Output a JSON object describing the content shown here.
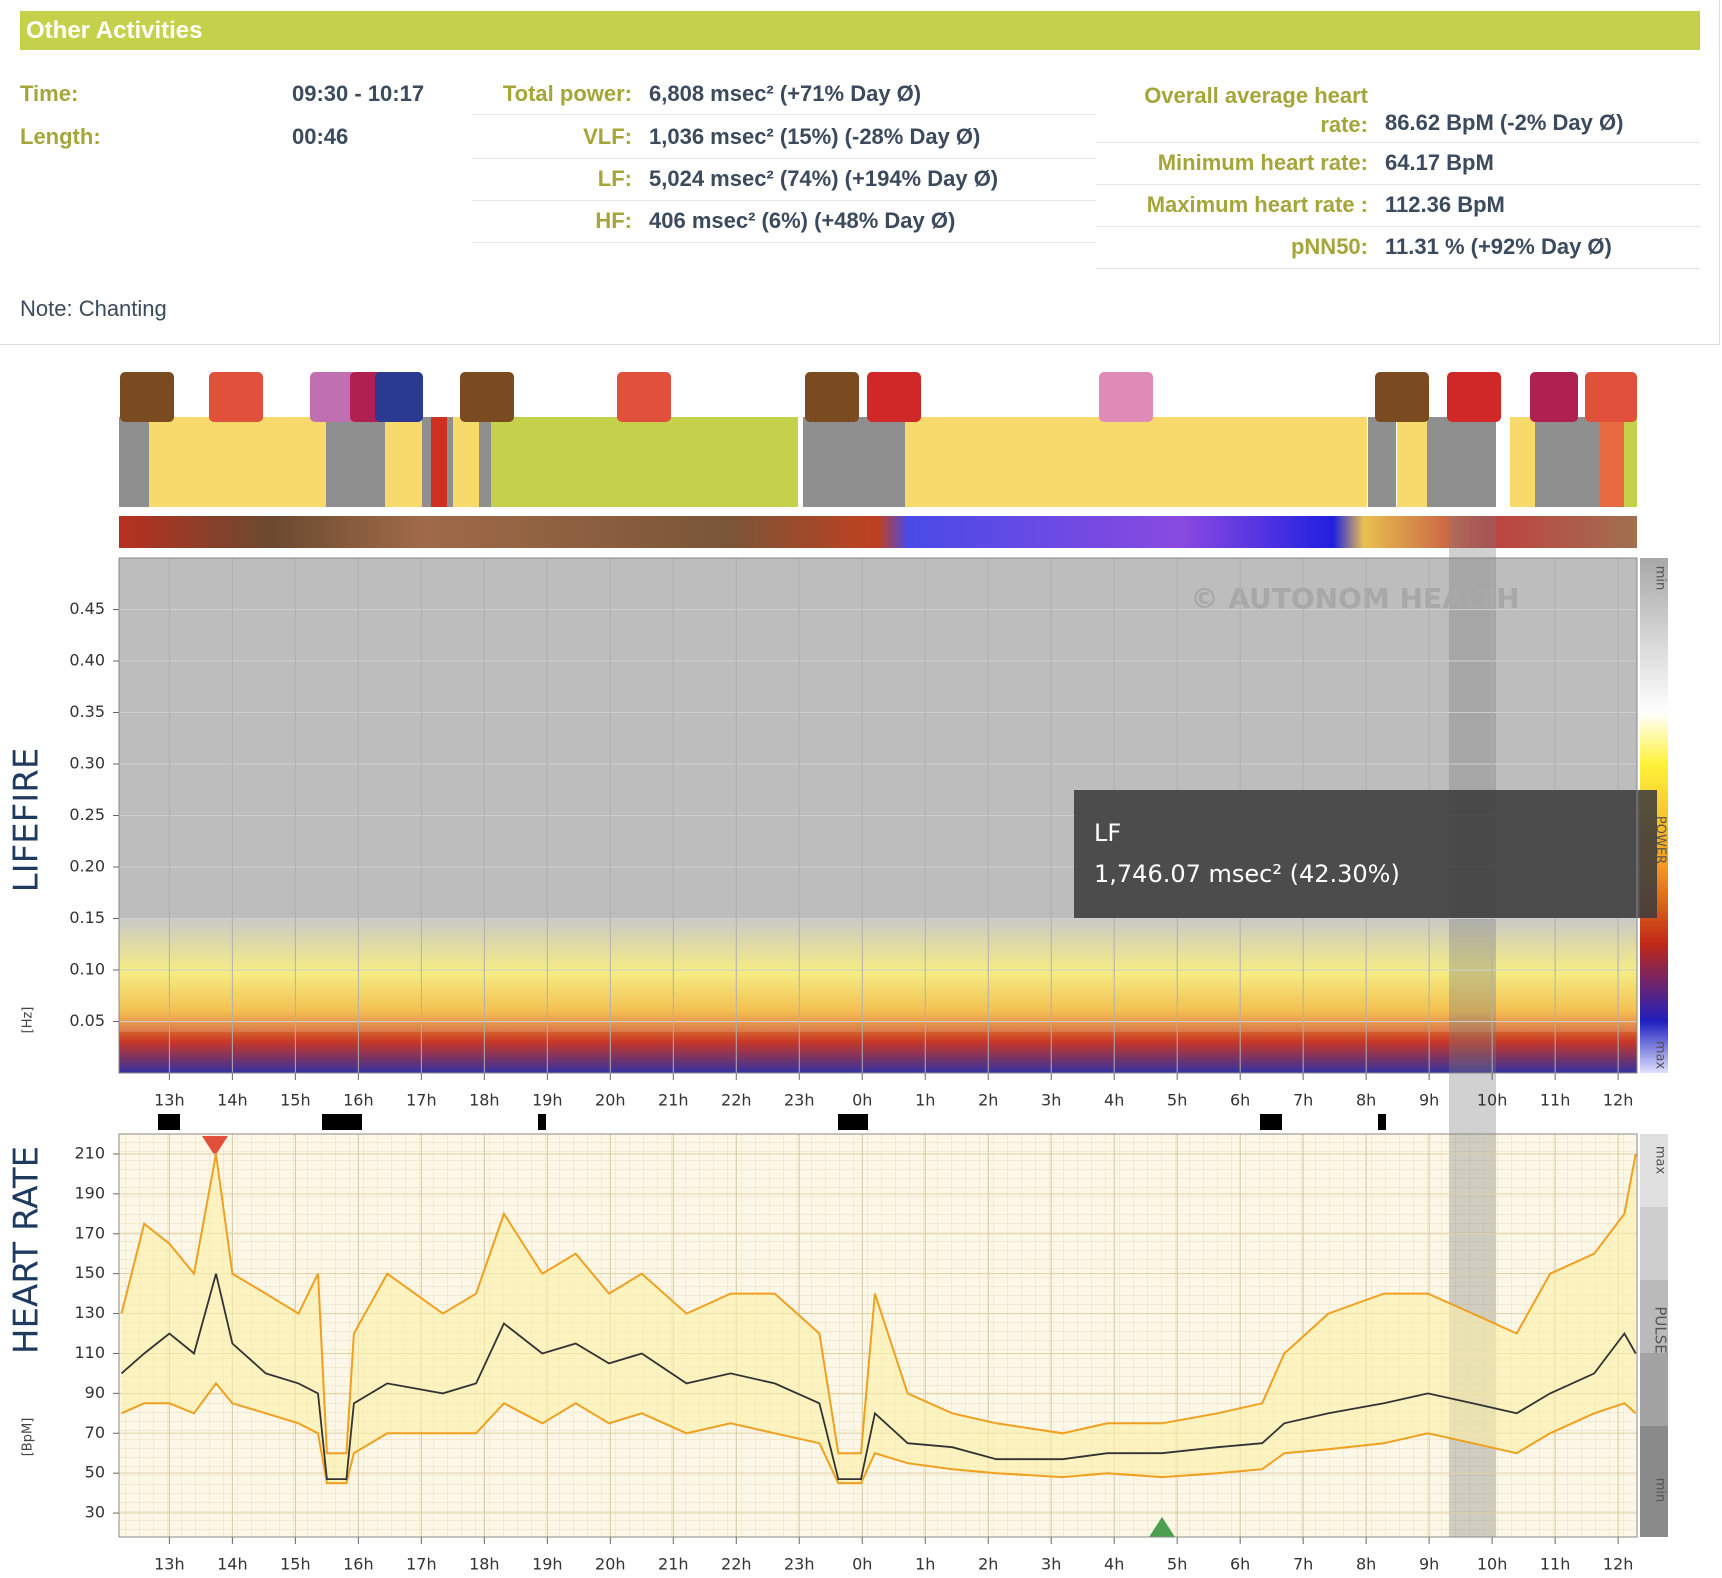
{
  "header": {
    "title": "Other Activities",
    "time": {
      "label": "Time:",
      "value": "09:30 - 10:17"
    },
    "length": {
      "label": "Length:",
      "value": "00:46"
    },
    "power": [
      {
        "label": "Total power:",
        "value": "6,808 msec² (+71% Day Ø)"
      },
      {
        "label": "VLF:",
        "value": "1,036 msec² (15%) (-28% Day Ø)"
      },
      {
        "label": "LF:",
        "value": "5,024 msec² (74%) (+194% Day Ø)"
      },
      {
        "label": "HF:",
        "value": "406 msec² (6%) (+48% Day Ø)"
      }
    ],
    "heart": [
      {
        "label": "Overall average heart rate:",
        "value": "86.62 BpM (-2% Day Ø)"
      },
      {
        "label": "Minimum heart rate:",
        "value": "64.17 BpM"
      },
      {
        "label": "Maximum heart rate :",
        "value": "112.36 BpM"
      },
      {
        "label": "pNN50:",
        "value": "11.31 % (+92% Day Ø)"
      }
    ],
    "note": "Note: Chanting"
  },
  "chart_data": [
    {
      "type": "heatmap",
      "title": "LIFEFIRE",
      "ylabel": "[Hz]",
      "watermark": "© AUTONOM HEALTH",
      "legend": {
        "top": "min",
        "middle": "POWER",
        "bottom": "max"
      },
      "tooltip": {
        "title": "LF",
        "text": "1,746.07 msec² (42.30%)"
      },
      "xlim": [
        12.2,
        36.3
      ],
      "xticks": [
        {
          "value": 13,
          "label": "13h"
        },
        {
          "value": 14,
          "label": "14h"
        },
        {
          "value": 15,
          "label": "15h"
        },
        {
          "value": 16,
          "label": "16h"
        },
        {
          "value": 17,
          "label": "17h"
        },
        {
          "value": 18,
          "label": "18h"
        },
        {
          "value": 19,
          "label": "19h"
        },
        {
          "value": 20,
          "label": "20h"
        },
        {
          "value": 21,
          "label": "21h"
        },
        {
          "value": 22,
          "label": "22h"
        },
        {
          "value": 23,
          "label": "23h"
        },
        {
          "value": 24,
          "label": "0h"
        },
        {
          "value": 25,
          "label": "1h"
        },
        {
          "value": 26,
          "label": "2h"
        },
        {
          "value": 27,
          "label": "3h"
        },
        {
          "value": 28,
          "label": "4h"
        },
        {
          "value": 29,
          "label": "5h"
        },
        {
          "value": 30,
          "label": "6h"
        },
        {
          "value": 31,
          "label": "7h"
        },
        {
          "value": 32,
          "label": "8h"
        },
        {
          "value": 33,
          "label": "9h"
        },
        {
          "value": 34,
          "label": "10h"
        },
        {
          "value": 35,
          "label": "11h"
        },
        {
          "value": 36,
          "label": "12h"
        }
      ],
      "ylim": [
        0,
        0.5
      ],
      "yticks": [
        0.05,
        {
          "value": 0.1,
          "label": "0.10"
        },
        0.15,
        {
          "value": 0.2,
          "label": "0.20"
        },
        0.25,
        {
          "value": 0.3,
          "label": "0.30"
        },
        0.35,
        {
          "value": 0.4,
          "label": "0.40"
        },
        0.45
      ]
    },
    {
      "type": "line",
      "title": "HEART RATE",
      "ylabel": "[BpM]",
      "legend": {
        "top": "max",
        "middle": "PULSE",
        "bottom": "min"
      },
      "xlim": [
        12.2,
        36.3
      ],
      "xticks": [
        {
          "value": 13,
          "label": "13h"
        },
        {
          "value": 14,
          "label": "14h"
        },
        {
          "value": 15,
          "label": "15h"
        },
        {
          "value": 16,
          "label": "16h"
        },
        {
          "value": 17,
          "label": "17h"
        },
        {
          "value": 18,
          "label": "18h"
        },
        {
          "value": 19,
          "label": "19h"
        },
        {
          "value": 20,
          "label": "20h"
        },
        {
          "value": 21,
          "label": "21h"
        },
        {
          "value": 22,
          "label": "22h"
        },
        {
          "value": 23,
          "label": "23h"
        },
        {
          "value": 24,
          "label": "0h"
        },
        {
          "value": 25,
          "label": "1h"
        },
        {
          "value": 26,
          "label": "2h"
        },
        {
          "value": 27,
          "label": "3h"
        },
        {
          "value": 28,
          "label": "4h"
        },
        {
          "value": 29,
          "label": "5h"
        },
        {
          "value": 30,
          "label": "6h"
        },
        {
          "value": 31,
          "label": "7h"
        },
        {
          "value": 32,
          "label": "8h"
        },
        {
          "value": 33,
          "label": "9h"
        },
        {
          "value": 34,
          "label": "10h"
        },
        {
          "value": 35,
          "label": "11h"
        },
        {
          "value": 36,
          "label": "12h"
        }
      ],
      "ylim": [
        18,
        220
      ],
      "yticks": [
        30,
        50,
        70,
        90,
        110,
        130,
        150,
        170,
        190,
        210
      ],
      "x": [
        12.24,
        12.6,
        13,
        13.39,
        13.74,
        14,
        14.53,
        15.05,
        15.36,
        15.5,
        15.81,
        15.93,
        16.46,
        17.34,
        17.87,
        18.31,
        18.92,
        19.45,
        19.98,
        20.5,
        21.21,
        21.91,
        22.61,
        23.32,
        23.62,
        23.98,
        24.2,
        24.72,
        25.43,
        26.13,
        27.18,
        27.89,
        28.76,
        29.64,
        30.35,
        30.7,
        31.4,
        32.28,
        32.98,
        33.69,
        34.39,
        34.92,
        35.62,
        36.1,
        36.28
      ],
      "series": [
        {
          "color": "#333333",
          "values": [
            100,
            110,
            120,
            110,
            150,
            115,
            100,
            95,
            90,
            47,
            47,
            85,
            95,
            90,
            95,
            125,
            110,
            115,
            105,
            110,
            95,
            100,
            95,
            85,
            47,
            47,
            80,
            65,
            63,
            57,
            57,
            60,
            60,
            63,
            65,
            75,
            80,
            85,
            90,
            85,
            80,
            90,
            100,
            120,
            110
          ]
        },
        {
          "color": "#f0a020",
          "values": [
            130,
            175,
            165,
            150,
            210,
            150,
            140,
            130,
            150,
            60,
            60,
            120,
            150,
            130,
            140,
            180,
            150,
            160,
            140,
            150,
            130,
            140,
            140,
            120,
            60,
            60,
            140,
            90,
            80,
            75,
            70,
            75,
            75,
            80,
            85,
            110,
            130,
            140,
            140,
            130,
            120,
            150,
            160,
            180,
            210
          ]
        },
        {
          "color": "#f0a020",
          "values": [
            80,
            85,
            85,
            80,
            95,
            85,
            80,
            75,
            70,
            45,
            45,
            60,
            70,
            70,
            70,
            85,
            75,
            85,
            75,
            80,
            70,
            75,
            70,
            65,
            45,
            45,
            60,
            55,
            52,
            50,
            48,
            50,
            48,
            50,
            52,
            60,
            62,
            65,
            70,
            65,
            60,
            70,
            80,
            85,
            80
          ]
        }
      ]
    }
  ]
}
